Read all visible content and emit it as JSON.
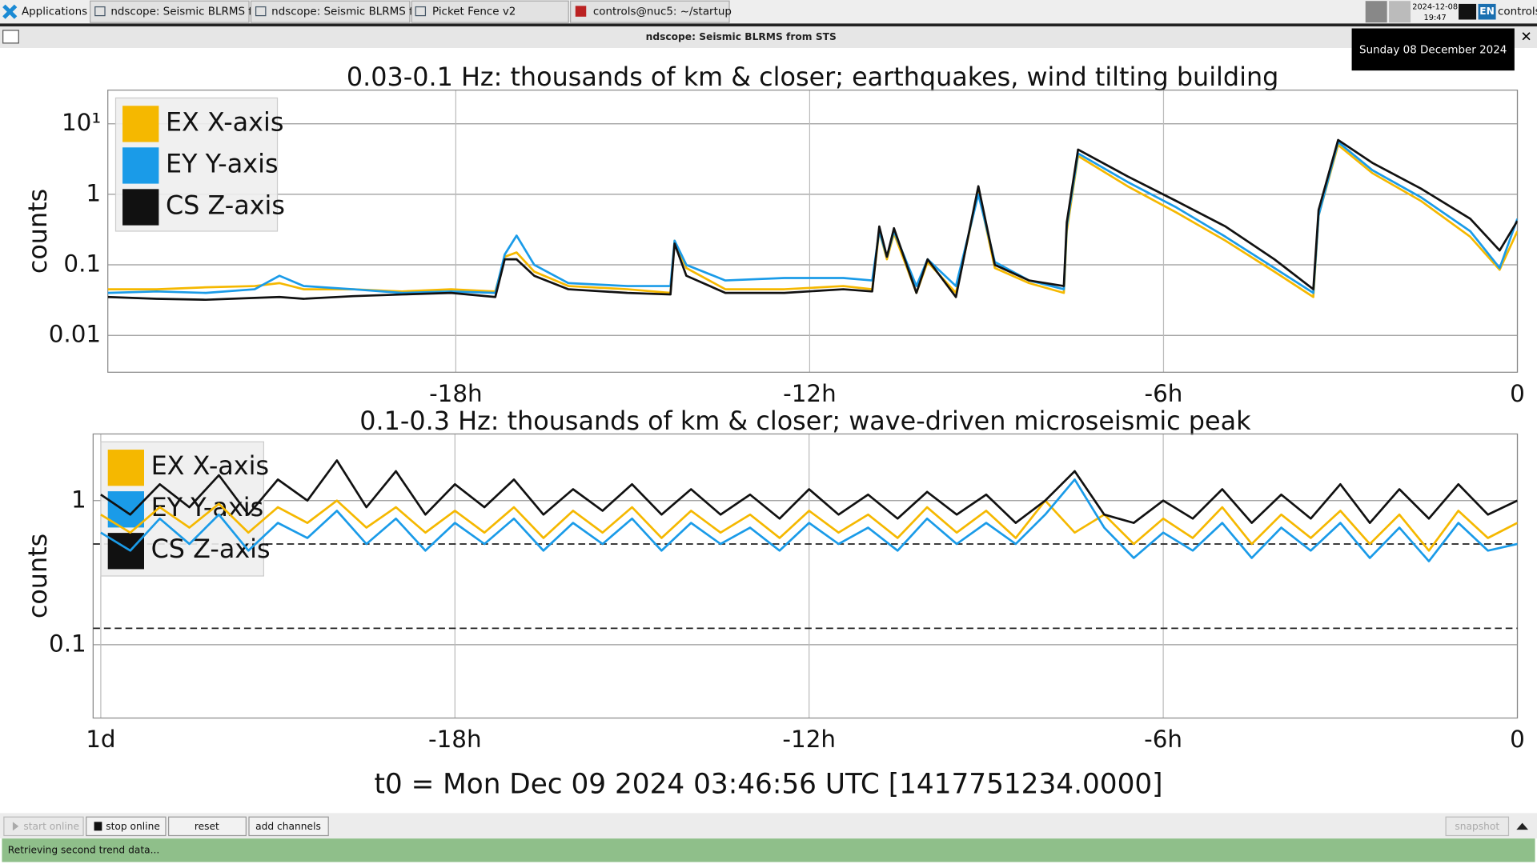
{
  "taskbar": {
    "menu": "Applications",
    "tasks": [
      "ndscope: Seismic BLRMS f...",
      "ndscope: Seismic BLRMS f...",
      "Picket Fence v2",
      "controls@nuc5: ~/startup"
    ],
    "date": "2024-12-08",
    "time": "19:47",
    "keyboard": "EN",
    "user": "controls"
  },
  "window": {
    "title": "ndscope: Seismic BLRMS from STS"
  },
  "tooltip": "Sunday 08 December 2024",
  "chart_data": [
    {
      "type": "line",
      "title": "0.03-0.1 Hz: thousands of km & closer; earthquakes, wind tilting building",
      "ylabel": "counts",
      "yscale": "log",
      "ylim": [
        0.003,
        30
      ],
      "yticks": [
        {
          "value": 10,
          "label": "10¹"
        },
        1,
        0.1,
        0.01
      ],
      "xlim": [
        -23.9,
        0
      ],
      "xticks": [
        {
          "value": -18,
          "label": "-18h"
        },
        {
          "value": -12,
          "label": "-12h"
        },
        {
          "value": -6,
          "label": "-6h"
        },
        0
      ],
      "grid": true,
      "legend": "upper left",
      "x": [
        -23.9,
        -23.07,
        -22.24,
        -21.41,
        -20.99,
        -20.58,
        -19.74,
        -18.91,
        -18.08,
        -17.33,
        -17.17,
        -16.97,
        -16.67,
        -16.09,
        -15.09,
        -14.36,
        -14.29,
        -14.09,
        -13.43,
        -12.43,
        -11.43,
        -10.94,
        -10.82,
        -10.69,
        -10.57,
        -10.19,
        -10.0,
        -9.52,
        -9.14,
        -8.86,
        -8.28,
        -7.69,
        -7.64,
        -7.45,
        -6.61,
        -5.78,
        -4.95,
        -4.12,
        -3.46,
        -3.37,
        -3.04,
        -2.46,
        -1.63,
        -0.8,
        -0.3,
        0
      ],
      "series": [
        {
          "name": "EX X-axis",
          "color": "#f5b800",
          "values": [
            0.045,
            0.045,
            0.048,
            0.05,
            0.055,
            0.045,
            0.045,
            0.042,
            0.045,
            0.042,
            0.13,
            0.15,
            0.08,
            0.05,
            0.045,
            0.04,
            0.22,
            0.09,
            0.045,
            0.045,
            0.05,
            0.045,
            0.3,
            0.12,
            0.28,
            0.04,
            0.11,
            0.04,
            1.1,
            0.09,
            0.055,
            0.04,
            0.3,
            3.5,
            1.3,
            0.55,
            0.22,
            0.08,
            0.035,
            0.5,
            5.0,
            2.0,
            0.8,
            0.25,
            0.085,
            0.3
          ]
        },
        {
          "name": "EY Y-axis",
          "color": "#1a9be8",
          "values": [
            0.04,
            0.042,
            0.04,
            0.045,
            0.07,
            0.05,
            0.045,
            0.04,
            0.042,
            0.04,
            0.14,
            0.26,
            0.1,
            0.055,
            0.05,
            0.05,
            0.22,
            0.1,
            0.06,
            0.065,
            0.065,
            0.06,
            0.3,
            0.13,
            0.3,
            0.05,
            0.12,
            0.05,
            1.0,
            0.11,
            0.06,
            0.045,
            0.35,
            3.8,
            1.5,
            0.65,
            0.25,
            0.09,
            0.04,
            0.5,
            5.5,
            2.2,
            0.9,
            0.3,
            0.09,
            0.45
          ]
        },
        {
          "name": "CS Z-axis",
          "color": "#111111",
          "values": [
            0.035,
            0.033,
            0.032,
            0.034,
            0.035,
            0.033,
            0.036,
            0.038,
            0.04,
            0.035,
            0.12,
            0.12,
            0.07,
            0.045,
            0.04,
            0.038,
            0.2,
            0.07,
            0.04,
            0.04,
            0.045,
            0.042,
            0.35,
            0.13,
            0.33,
            0.04,
            0.12,
            0.035,
            1.3,
            0.1,
            0.06,
            0.05,
            0.4,
            4.3,
            1.8,
            0.8,
            0.35,
            0.12,
            0.045,
            0.6,
            5.9,
            2.8,
            1.2,
            0.45,
            0.16,
            0.42
          ]
        }
      ]
    },
    {
      "type": "line",
      "title": "0.1-0.3 Hz: thousands of km & closer; wave-driven microseismic peak",
      "ylabel": "counts",
      "yscale": "log",
      "ylim": [
        0.031,
        2.9
      ],
      "yticks": [
        1,
        0.1
      ],
      "reference_lines": [
        0.5,
        0.13
      ],
      "xlim": [
        -24.13,
        0
      ],
      "xticks": [
        {
          "value": -24,
          "label": "1d"
        },
        {
          "value": -18,
          "label": "-18h"
        },
        {
          "value": -12,
          "label": "-12h"
        },
        {
          "value": -6,
          "label": "-6h"
        },
        0
      ],
      "grid": true,
      "legend": "upper left",
      "x": [
        -24,
        -23.5,
        -23,
        -22.5,
        -22,
        -21.5,
        -21,
        -20.5,
        -20,
        -19.5,
        -19,
        -18.5,
        -18,
        -17.5,
        -17,
        -16.5,
        -16,
        -15.5,
        -15,
        -14.5,
        -14,
        -13.5,
        -13,
        -12.5,
        -12,
        -11.5,
        -11,
        -10.5,
        -10,
        -9.5,
        -9,
        -8.5,
        -8,
        -7.5,
        -7,
        -6.5,
        -6,
        -5.5,
        -5,
        -4.5,
        -4,
        -3.5,
        -3,
        -2.5,
        -2,
        -1.5,
        -1,
        -0.5,
        0
      ],
      "series": [
        {
          "name": "EX X-axis",
          "color": "#f5b800",
          "values": [
            0.8,
            0.6,
            0.9,
            0.65,
            0.95,
            0.6,
            0.9,
            0.7,
            1.0,
            0.65,
            0.9,
            0.6,
            0.85,
            0.6,
            0.9,
            0.55,
            0.85,
            0.6,
            0.9,
            0.55,
            0.85,
            0.6,
            0.8,
            0.55,
            0.85,
            0.6,
            0.8,
            0.55,
            0.9,
            0.6,
            0.85,
            0.55,
            1.0,
            0.6,
            0.8,
            0.5,
            0.75,
            0.55,
            0.9,
            0.5,
            0.8,
            0.55,
            0.85,
            0.5,
            0.8,
            0.45,
            0.85,
            0.55,
            0.7
          ]
        },
        {
          "name": "EY Y-axis",
          "color": "#1a9be8",
          "values": [
            0.6,
            0.45,
            0.75,
            0.5,
            0.8,
            0.45,
            0.7,
            0.55,
            0.85,
            0.5,
            0.75,
            0.45,
            0.7,
            0.5,
            0.75,
            0.45,
            0.7,
            0.5,
            0.75,
            0.45,
            0.7,
            0.5,
            0.65,
            0.45,
            0.7,
            0.5,
            0.65,
            0.45,
            0.75,
            0.5,
            0.7,
            0.5,
            0.8,
            1.4,
            0.65,
            0.4,
            0.6,
            0.45,
            0.7,
            0.4,
            0.65,
            0.45,
            0.7,
            0.4,
            0.65,
            0.38,
            0.7,
            0.45,
            0.5
          ]
        },
        {
          "name": "CS Z-axis",
          "color": "#111111",
          "values": [
            1.1,
            0.8,
            1.3,
            0.9,
            1.5,
            0.8,
            1.4,
            1.0,
            1.9,
            0.9,
            1.6,
            0.8,
            1.3,
            0.9,
            1.4,
            0.8,
            1.2,
            0.85,
            1.3,
            0.8,
            1.2,
            0.8,
            1.1,
            0.75,
            1.2,
            0.8,
            1.1,
            0.75,
            1.15,
            0.8,
            1.1,
            0.7,
            1.0,
            1.6,
            0.8,
            0.7,
            1.0,
            0.75,
            1.2,
            0.7,
            1.1,
            0.75,
            1.3,
            0.7,
            1.2,
            0.75,
            1.3,
            0.8,
            1.0
          ]
        }
      ]
    }
  ],
  "t0": "t0 = Mon Dec 09 2024 03:46:56 UTC [1417751234.0000]",
  "buttons": [
    "start online",
    "stop online",
    "reset",
    "add channels",
    "snapshot"
  ],
  "status": "Retrieving second trend data..."
}
